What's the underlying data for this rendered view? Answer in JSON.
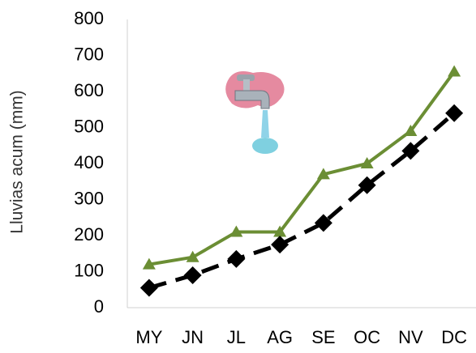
{
  "chart_data": {
    "type": "line",
    "y_label": "Lluvias acum (mm)",
    "categories": [
      "MY",
      "JN",
      "JL",
      "AG",
      "SE",
      "OC",
      "NV",
      "DC"
    ],
    "series": [
      {
        "color": "#6b8e34",
        "marker": "triangle",
        "line_style": "solid",
        "values": [
          120,
          140,
          210,
          210,
          370,
          400,
          490,
          655
        ]
      },
      {
        "color": "#000000",
        "marker": "diamond",
        "line_style": "dashed",
        "values": [
          55,
          90,
          135,
          175,
          235,
          340,
          435,
          540
        ]
      }
    ],
    "ylim": [
      0,
      800
    ],
    "yticks": [
      0,
      100,
      200,
      300,
      400,
      500,
      600,
      700,
      800
    ],
    "grid": false
  }
}
